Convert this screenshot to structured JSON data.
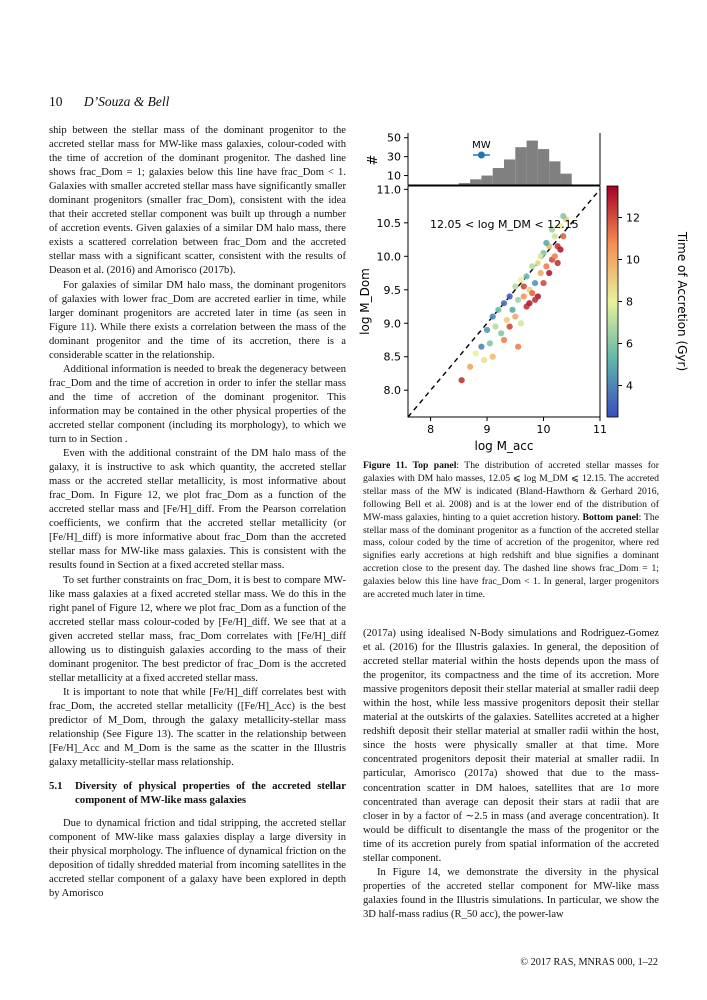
{
  "header": {
    "page_number": "10",
    "authors": "D’Souza & Bell"
  },
  "left_column": {
    "paragraphs": [
      "ship between the stellar mass of the dominant progenitor to the accreted stellar mass for MW-like mass galaxies, colour-coded with the time of accretion of the dominant progenitor. The dashed line shows frac_Dom = 1; galaxies below this line have frac_Dom < 1. Galaxies with smaller accreted stellar mass have significantly smaller dominant progenitors (smaller frac_Dom), consistent with the idea that their accreted stellar component was built up through a number of accretion events. Given galaxies of a similar DM halo mass, there exists a scattered correlation between frac_Dom and the accreted stellar mass with a significant scatter, consistent with the results of Deason et al. (2016) and Amorisco (2017b).",
      "For galaxies of similar DM halo mass, the dominant progenitors of galaxies with lower frac_Dom are accreted earlier in time, while larger dominant progenitors are accreted later in time (as seen in Figure 11). While there exists a correlation between the mass of the dominant progenitor and the time of its accretion, there is a considerable scatter in the relationship.",
      "Additional information is needed to break the degeneracy between frac_Dom and the time of accretion in order to infer the stellar mass and the time of accretion of the dominant progenitor. This information may be contained in the other physical properties of the accreted stellar component (including its morphology), to which we turn to in Section .",
      "Even with the additional constraint of the DM halo mass of the galaxy, it is instructive to ask which quantity, the accreted stellar mass or the accreted stellar metallicity, is most informative about frac_Dom. In Figure 12, we plot frac_Dom as a function of the accreted stellar mass and [Fe/H]_diff. From the Pearson correlation coefficients, we confirm that the accreted stellar metallicity (or [Fe/H]_diff) is more informative about frac_Dom than the accreted stellar mass for MW-like mass galaxies. This is consistent with the results found in Section  at a fixed accreted stellar mass.",
      "To set further constraints on frac_Dom, it is best to compare MW-like mass galaxies at a fixed accreted stellar mass. We do this in the right panel of Figure 12, where we plot frac_Dom as a function of the accreted stellar mass colour-coded by [Fe/H]_diff. We see that at a given accreted stellar mass, frac_Dom correlates with [Fe/H]_diff allowing us to distinguish galaxies according to the mass of their dominant progenitor. The best predictor of frac_Dom is the accreted stellar metallicity at a fixed accreted stellar mass.",
      "It is important to note that while [Fe/H]_diff correlates best with frac_Dom, the accreted stellar metallicity ([Fe/H]_Acc) is the best predictor of M_Dom, through the galaxy metallicity-stellar mass relationship (See Figure 13). The scatter in the relationship between [Fe/H]_Acc and M_Dom is the same as the scatter in the Illustris galaxy metallicity-stellar mass relationship."
    ],
    "section_number": "5.1",
    "section_title": "Diversity of physical properties of the accreted stellar component of MW-like mass galaxies",
    "section_paragraph": "Due to dynamical friction and tidal stripping, the accreted stellar component of MW-like mass galaxies display a large diversity in their physical morphology. The influence of dynamical friction on the deposition of tidally shredded material from incoming satellites in the accreted stellar component of a galaxy have been explored in depth by Amorisco"
  },
  "figure": {
    "caption_label": "Figure 11.",
    "caption_top_label": "Top panel",
    "caption_top_text": ": The distribution of accreted stellar masses for galaxies with DM halo masses, 12.05 ⩽ log M_DM ⩽ 12.15. The accreted stellar mass of the MW is indicated (Bland-Hawthorn & Gerhard 2016, following Bell et al. 2008) and is at the lower end of the distribution of MW-mass galaxies, hinting to a quiet accretion history.",
    "caption_bottom_label": "Bottom panel",
    "caption_bottom_text": ": The stellar mass of the dominant progenitor as a function of the accreted stellar mass, colour coded by the time of accretion of the progenitor, where red signifies early accretions at high redshift and blue signifies a dominant accretion close to the present day. The dashed line shows frac_Dom = 1; galaxies below this line have frac_Dom < 1. In general, larger progenitors are accreted much later in time."
  },
  "chart_data": [
    {
      "type": "bar",
      "panel": "top",
      "ylabel": "#",
      "yticks": [
        10,
        30,
        50
      ],
      "ylim": [
        0,
        55
      ],
      "bin_edges": [
        8.5,
        8.7,
        8.9,
        9.1,
        9.3,
        9.5,
        9.7,
        9.9,
        10.1,
        10.3,
        10.5
      ],
      "counts": [
        2,
        6,
        10,
        18,
        27,
        40,
        47,
        38,
        25,
        12
      ],
      "annotation": "MW",
      "mw_marker": {
        "log_macc": 8.9,
        "error": [
          8.75,
          9.05
        ]
      },
      "bar_color": "#808080"
    },
    {
      "type": "scatter",
      "panel": "bottom",
      "xlabel": "log M_acc",
      "ylabel": "log M_Dom",
      "xlim": [
        7.6,
        11.0
      ],
      "ylim": [
        7.6,
        11.05
      ],
      "xticks": [
        8,
        9,
        10,
        11
      ],
      "yticks": [
        8.0,
        8.5,
        9.0,
        9.5,
        10.0,
        10.5,
        11.0
      ],
      "annotation": "12.05 < log M_DM < 12.15",
      "reference_line": "frac_Dom = 1 (y = x)",
      "colorbar": {
        "label": "Time of Accretion (Gyr)",
        "range": [
          2.5,
          13.5
        ],
        "ticks": [
          4,
          6,
          8,
          10,
          12
        ]
      },
      "points": [
        [
          8.55,
          8.15,
          12.5
        ],
        [
          8.7,
          8.35,
          10
        ],
        [
          8.8,
          8.55,
          8
        ],
        [
          8.9,
          8.65,
          4
        ],
        [
          8.95,
          8.45,
          8.5
        ],
        [
          9.0,
          8.9,
          4.5
        ],
        [
          9.05,
          8.7,
          6
        ],
        [
          9.1,
          9.1,
          4
        ],
        [
          9.1,
          8.5,
          9.5
        ],
        [
          9.15,
          8.95,
          7
        ],
        [
          9.2,
          9.2,
          5.5
        ],
        [
          9.25,
          8.85,
          6
        ],
        [
          9.3,
          9.3,
          3.5
        ],
        [
          9.3,
          8.75,
          11
        ],
        [
          9.35,
          9.05,
          9
        ],
        [
          9.4,
          9.4,
          3
        ],
        [
          9.4,
          8.95,
          12
        ],
        [
          9.45,
          9.2,
          5
        ],
        [
          9.5,
          9.55,
          7
        ],
        [
          9.5,
          9.1,
          10
        ],
        [
          9.55,
          8.65,
          11
        ],
        [
          9.55,
          9.35,
          6.5
        ],
        [
          9.6,
          9.65,
          8
        ],
        [
          9.6,
          9.0,
          7.5
        ],
        [
          9.65,
          9.4,
          10.5
        ],
        [
          9.7,
          9.7,
          5.5
        ],
        [
          9.7,
          9.25,
          12.5
        ],
        [
          9.75,
          9.5,
          9
        ],
        [
          9.8,
          9.85,
          7
        ],
        [
          9.8,
          9.45,
          11.5
        ],
        [
          9.85,
          9.6,
          4.5
        ],
        [
          9.9,
          9.9,
          8.5
        ],
        [
          9.9,
          9.4,
          13
        ],
        [
          9.95,
          9.75,
          10
        ],
        [
          10.0,
          10.05,
          6
        ],
        [
          10.0,
          9.6,
          12
        ],
        [
          10.05,
          9.85,
          11
        ],
        [
          10.1,
          10.15,
          9.5
        ],
        [
          10.1,
          9.75,
          13
        ],
        [
          10.15,
          9.95,
          12
        ],
        [
          10.2,
          10.3,
          7.5
        ],
        [
          10.2,
          10.0,
          11
        ],
        [
          10.25,
          10.15,
          12.5
        ],
        [
          10.3,
          10.45,
          8
        ],
        [
          10.3,
          10.1,
          13
        ],
        [
          10.35,
          10.3,
          11.5
        ],
        [
          10.4,
          10.55,
          9
        ],
        [
          10.25,
          9.9,
          12.5
        ],
        [
          10.05,
          10.2,
          5
        ],
        [
          9.95,
          10.0,
          7.5
        ],
        [
          10.15,
          10.4,
          6.5
        ],
        [
          9.75,
          9.3,
          13
        ],
        [
          9.65,
          9.55,
          12
        ],
        [
          9.85,
          9.35,
          12.5
        ],
        [
          10.35,
          10.6,
          6
        ]
      ]
    }
  ],
  "right_column": {
    "paragraphs": [
      "(2017a) using idealised N-Body simulations and Rodriguez-Gomez et al. (2016) for the Illustris galaxies. In general, the deposition of accreted stellar material within the hosts depends upon the mass of the progenitor, its compactness and the time of its accretion. More massive progenitors deposit their stellar material at smaller radii deep within the host, while less massive progenitors deposit their stellar material at the outskirts of the galaxies. Satellites accreted at a higher redshift deposit their stellar material at smaller radii within the host, since the hosts were physically smaller at that time. More concentrated progenitors deposit their material at smaller radii. In particular, Amorisco (2017a) showed that due to the mass-concentration scatter in DM haloes, satellites that are 1σ more concentrated than average can deposit their stars at radii that are closer in by a factor of ∼2.5 in mass (and average concentration). It would be difficult to disentangle the mass of the progenitor or the time of its accretion purely from spatial information of the accreted stellar component.",
      "In Figure 14, we demonstrate the diversity in the physical properties of the accreted stellar component for MW-like mass galaxies found in the Illustris simulations. In particular, we show the 3D half-mass radius (R_50 acc), the power-law"
    ]
  },
  "footer": "© 2017 RAS, MNRAS 000, 1–22"
}
